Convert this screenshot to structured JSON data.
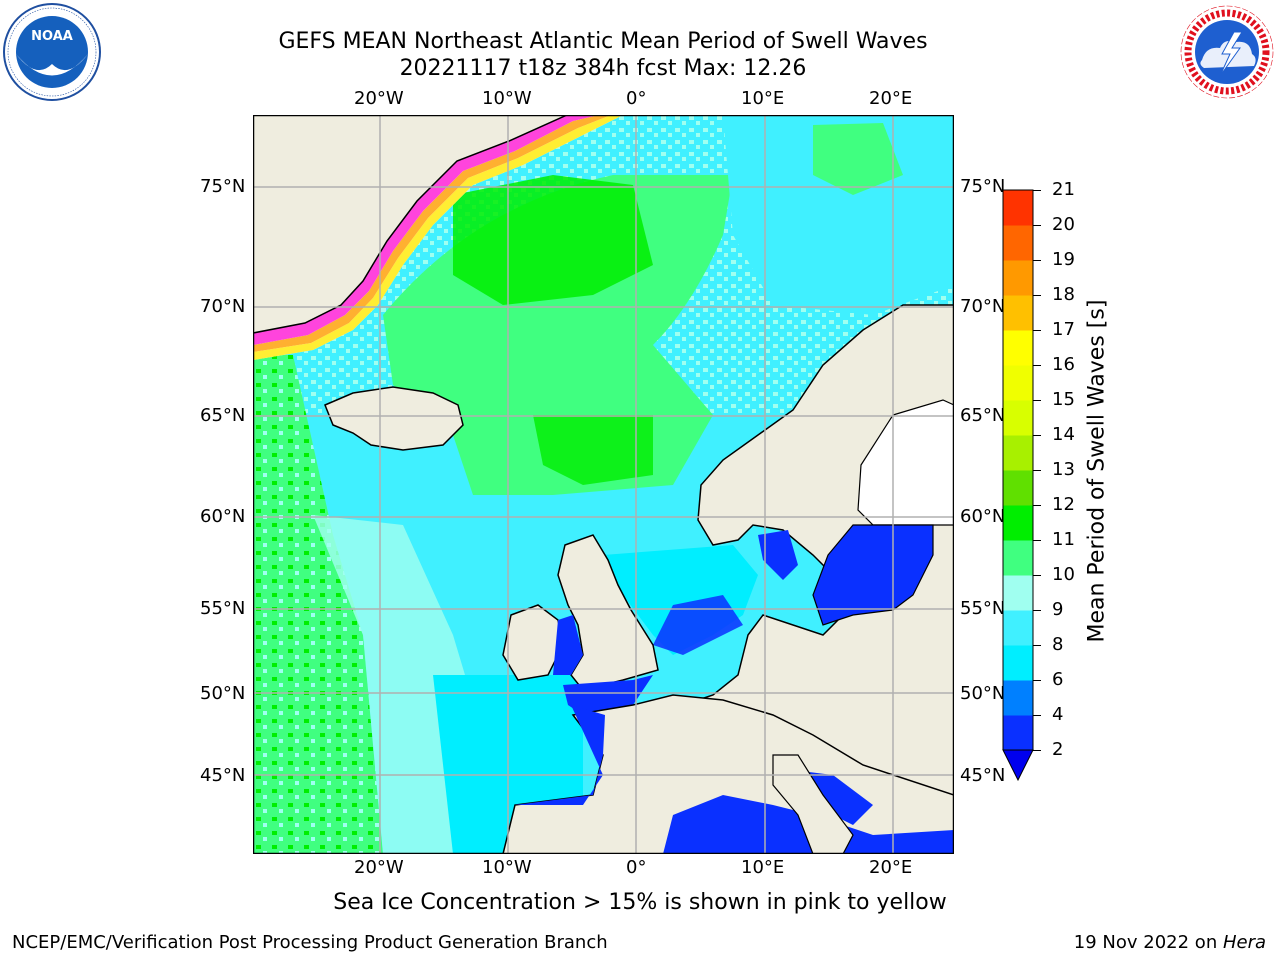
{
  "header": {
    "title_line1": "GEFS MEAN Northeast Atlantic Mean Period of Swell Waves",
    "title_line2": "20221117 t18z 384h fcst   Max: 12.26"
  },
  "logos": {
    "left": "noaa-logo",
    "right": "national-weather-service-logo",
    "left_ring_text": "NATIONAL OCEANIC AND ATMOSPHERIC ADMINISTRATION · U.S. DEPARTMENT OF COMMERCE",
    "left_center_text": "NOAA",
    "right_ring_text": "NATIONAL WEATHER SERVICE"
  },
  "map": {
    "top_lon_labels": [
      "20°W",
      "10°W",
      "0°",
      "10°E",
      "20°E"
    ],
    "bottom_lon_labels": [
      "20°W",
      "10°W",
      "0°",
      "10°E",
      "20°E"
    ],
    "lat_labels_left": [
      "75°N",
      "70°N",
      "65°N",
      "60°N",
      "55°N",
      "50°N",
      "45°N"
    ],
    "lat_labels_right": [
      "75°N",
      "70°N",
      "65°N",
      "60°N",
      "55°N",
      "50°N",
      "45°N"
    ],
    "colors": {
      "land": "#efeddf",
      "ice_pink": "#ff44dd",
      "ice_orange": "#ffb030",
      "ice_yellow": "#ffee33",
      "grid": "#b0b0b0"
    }
  },
  "colorbar": {
    "title": "Mean Period of Swell Waves [s]",
    "tick_labels": [
      "2",
      "4",
      "6",
      "8",
      "9",
      "10",
      "11",
      "12",
      "13",
      "14",
      "15",
      "16",
      "17",
      "18",
      "19",
      "20",
      "21"
    ],
    "colors": [
      "#0a30ff",
      "#0080ff",
      "#00eeff",
      "#40f0ff",
      "#a0fff0",
      "#40ff80",
      "#00ee00",
      "#60e000",
      "#a8f000",
      "#d8ff00",
      "#f0ff00",
      "#ffff00",
      "#ffc000",
      "#ff9900",
      "#ff6600",
      "#ff3300",
      "#ff0000"
    ],
    "under_color": "#0000ee"
  },
  "note": "Sea Ice Concentration > 15% is shown in pink to yellow",
  "footer": {
    "left": "NCEP/EMC/Verification Post Processing Product Generation Branch",
    "right_date": "19 Nov 2022 on ",
    "right_host": "Hera"
  }
}
